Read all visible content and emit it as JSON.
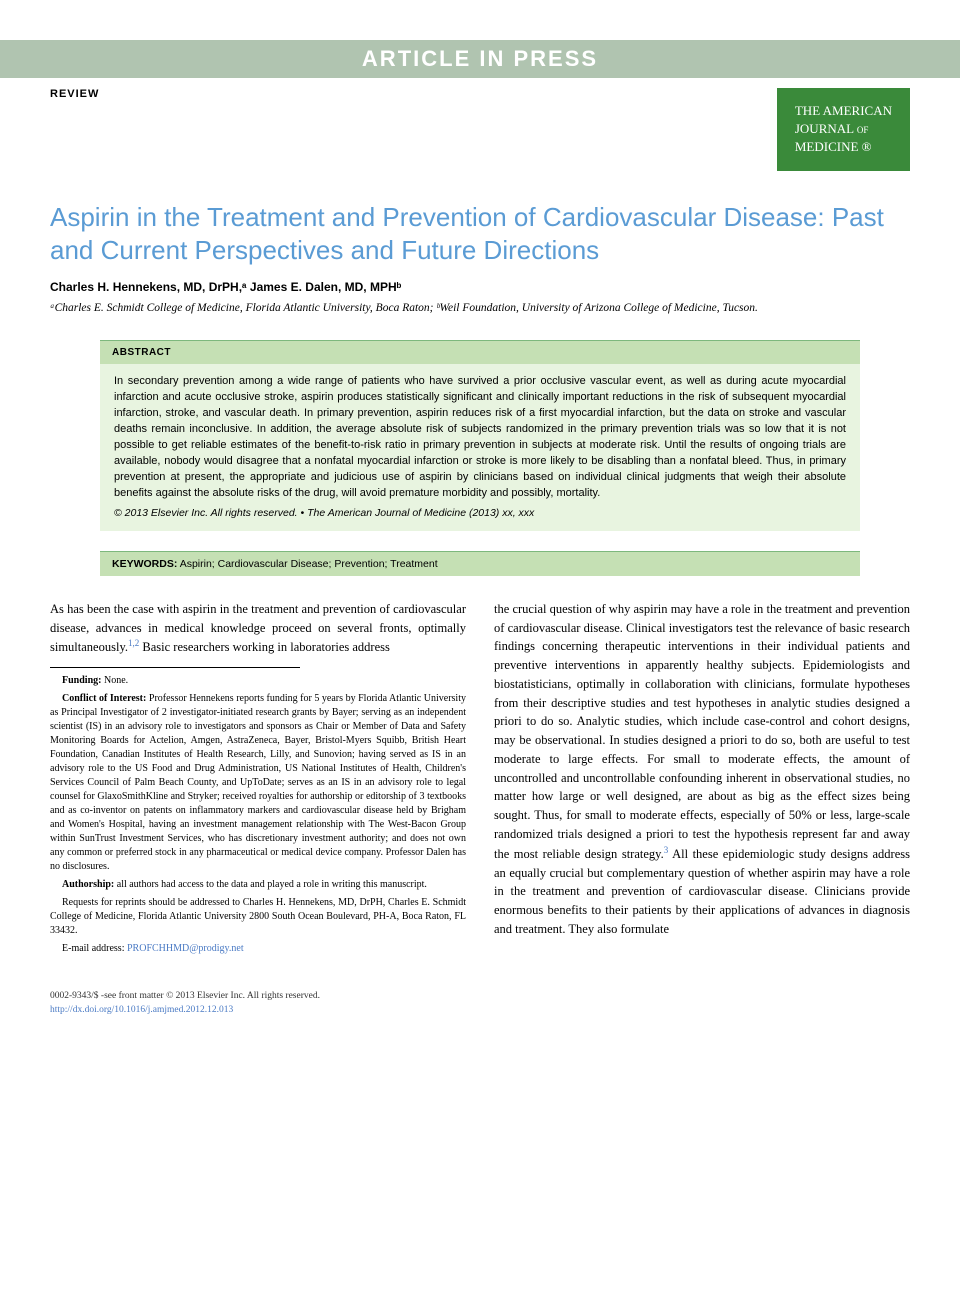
{
  "banner": "ARTICLE IN PRESS",
  "article_type": "REVIEW",
  "journal_badge": {
    "line1": "THE AMERICAN",
    "line2": "JOURNAL of",
    "line3": "MEDICINE ®"
  },
  "title": "Aspirin in the Treatment and Prevention of Cardiovascular Disease: Past and Current Perspectives and Future Directions",
  "authors_html": "Charles H. Hennekens, MD, DrPH,ᵃ James E. Dalen, MD, MPHᵇ",
  "affiliations_html": "ᵃCharles E. Schmidt College of Medicine, Florida Atlantic University, Boca Raton; ᵇWeil Foundation, University of Arizona College of Medicine, Tucson.",
  "abstract": {
    "label": "ABSTRACT",
    "text": "In secondary prevention among a wide range of patients who have survived a prior occlusive vascular event, as well as during acute myocardial infarction and acute occlusive stroke, aspirin produces statistically significant and clinically important reductions in the risk of subsequent myocardial infarction, stroke, and vascular death. In primary prevention, aspirin reduces risk of a first myocardial infarction, but the data on stroke and vascular deaths remain inconclusive. In addition, the average absolute risk of subjects randomized in the primary prevention trials was so low that it is not possible to get reliable estimates of the benefit-to-risk ratio in primary prevention in subjects at moderate risk. Until the results of ongoing trials are available, nobody would disagree that a nonfatal myocardial infarction or stroke is more likely to be disabling than a nonfatal bleed. Thus, in primary prevention at present, the appropriate and judicious use of aspirin by clinicians based on individual clinical judgments that weigh their absolute benefits against the absolute risks of the drug, will avoid premature morbidity and possibly, mortality.",
    "copyright": "© 2013 Elsevier Inc. All rights reserved. • The American Journal of Medicine (2013) xx, xxx"
  },
  "keywords": {
    "label": "KEYWORDS:",
    "text": "Aspirin; Cardiovascular Disease; Prevention; Treatment"
  },
  "body": {
    "col1_intro": "As has been the case with aspirin in the treatment and prevention of cardiovascular disease, advances in medical knowledge proceed on several fronts, optimally simultaneously.",
    "col1_ref": "1,2",
    "col1_intro_cont": " Basic researchers working in laboratories address",
    "col2_part1": "the crucial question of why aspirin may have a role in the treatment and prevention of cardiovascular disease. Clinical investigators test the relevance of basic research findings concerning therapeutic interventions in their individual patients and preventive interventions in apparently healthy subjects. Epidemiologists and biostatisticians, optimally in collaboration with clinicians, formulate hypotheses from their descriptive studies and test hypotheses in analytic studies designed a priori to do so. Analytic studies, which include case-control and cohort designs, may be observational. In studies designed a priori to do so, both are useful to test moderate to large effects. For small to moderate effects, the amount of uncontrolled and uncontrollable confounding inherent in observational studies, no matter how large or well designed, are about as big as the effect sizes being sought. Thus, for small to moderate effects, especially of 50% or less, large-scale randomized trials designed a priori to test the hypothesis represent far and away the most reliable design strategy.",
    "col2_ref": "3",
    "col2_part2": " All these epidemiologic study designs address an equally crucial but complementary question of whether aspirin may have a role in the treatment and prevention of cardiovascular disease. Clinicians provide enormous benefits to their patients by their applications of advances in diagnosis and treatment. They also formulate"
  },
  "footnotes": {
    "funding_label": "Funding:",
    "funding_text": " None.",
    "conflict_label": "Conflict of Interest:",
    "conflict_text": " Professor Hennekens reports funding for 5 years by Florida Atlantic University as Principal Investigator of 2 investigator-initiated research grants by Bayer; serving as an independent scientist (IS) in an advisory role to investigators and sponsors as Chair or Member of Data and Safety Monitoring Boards for Actelion, Amgen, AstraZeneca, Bayer, Bristol-Myers Squibb, British Heart Foundation, Canadian Institutes of Health Research, Lilly, and Sunovion; having served as IS in an advisory role to the US Food and Drug Administration, US National Institutes of Health, Children's Services Council of Palm Beach County, and UpToDate; serves as an IS in an advisory role to legal counsel for GlaxoSmithKline and Stryker; received royalties for authorship or editorship of 3 textbooks and as co-inventor on patents on inflammatory markers and cardiovascular disease held by Brigham and Women's Hospital, having an investment management relationship with The West-Bacon Group within SunTrust Investment Services, who has discretionary investment authority; and does not own any common or preferred stock in any pharmaceutical or medical device company. Professor Dalen has no disclosures.",
    "authorship_label": "Authorship:",
    "authorship_text": " all authors had access to the data and played a role in writing this manuscript.",
    "reprints_text": "Requests for reprints should be addressed to Charles H. Hennekens, MD, DrPH, Charles E. Schmidt College of Medicine, Florida Atlantic University 2800 South Ocean Boulevard, PH-A, Boca Raton, FL 33432.",
    "email_label": "E-mail address: ",
    "email": "PROFCHHMD@prodigy.net"
  },
  "footer": {
    "issn": "0002-9343/$ -see front matter © 2013 Elsevier Inc. All rights reserved.",
    "doi": "http://dx.doi.org/10.1016/j.amjmed.2012.12.013"
  },
  "colors": {
    "banner_bg": "#b0c4b0",
    "title_color": "#5a9bd4",
    "badge_bg": "#3a8a3a",
    "abstract_bg": "#e8f4e0",
    "abstract_header_bg": "#c5e0b4",
    "link_color": "#4a7ac4"
  }
}
